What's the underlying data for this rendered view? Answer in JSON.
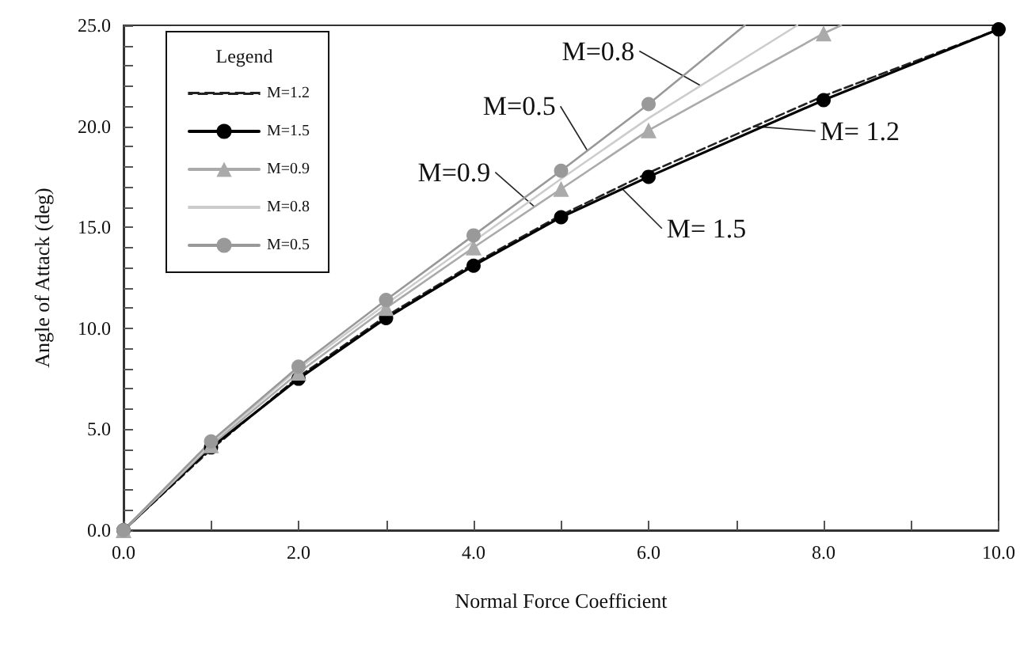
{
  "chart_data": {
    "type": "line",
    "xlabel": "Normal Force Coefficient",
    "ylabel": "Angle of Attack (deg)",
    "legend_title": "Legend",
    "legend": "top left",
    "grid": false,
    "xlim": [
      0,
      10
    ],
    "ylim": [
      0,
      25
    ],
    "xticks": [
      {
        "value": 0,
        "label": "0.0"
      },
      {
        "value": 1,
        "label": null
      },
      {
        "value": 2,
        "label": "2.0"
      },
      {
        "value": 3,
        "label": null
      },
      {
        "value": 4,
        "label": "4.0"
      },
      {
        "value": 5,
        "label": null
      },
      {
        "value": 6,
        "label": "6.0"
      },
      {
        "value": 7,
        "label": null
      },
      {
        "value": 8,
        "label": "8.0"
      },
      {
        "value": 9,
        "label": null
      },
      {
        "value": 10,
        "label": "10.0"
      }
    ],
    "yticks": [
      {
        "value": 0,
        "label": "0.0"
      },
      {
        "value": 1,
        "label": null
      },
      {
        "value": 2,
        "label": null
      },
      {
        "value": 3,
        "label": null
      },
      {
        "value": 4,
        "label": null
      },
      {
        "value": 5,
        "label": "5.0"
      },
      {
        "value": 6,
        "label": null
      },
      {
        "value": 7,
        "label": null
      },
      {
        "value": 8,
        "label": null
      },
      {
        "value": 9,
        "label": null
      },
      {
        "value": 10,
        "label": "10.0"
      },
      {
        "value": 11,
        "label": null
      },
      {
        "value": 12,
        "label": null
      },
      {
        "value": 13,
        "label": null
      },
      {
        "value": 14,
        "label": null
      },
      {
        "value": 15,
        "label": "15.0"
      },
      {
        "value": 16,
        "label": null
      },
      {
        "value": 17,
        "label": null
      },
      {
        "value": 18,
        "label": null
      },
      {
        "value": 19,
        "label": null
      },
      {
        "value": 20,
        "label": "20.0"
      },
      {
        "value": 21,
        "label": null
      },
      {
        "value": 22,
        "label": null
      },
      {
        "value": 23,
        "label": null
      },
      {
        "value": 24,
        "label": null
      },
      {
        "value": 25,
        "label": "25.0"
      }
    ],
    "series": [
      {
        "name": "M=1.2",
        "color": "#222222",
        "marker": "none",
        "line_style": "dashed",
        "x": [
          0,
          1,
          2,
          3,
          4,
          5,
          6,
          8,
          10
        ],
        "values": [
          0,
          4.0,
          7.6,
          10.6,
          13.2,
          15.6,
          17.7,
          21.5,
          24.8
        ]
      },
      {
        "name": "M=1.5",
        "color": "#000000",
        "marker": "circle",
        "line_style": "solid",
        "x": [
          0,
          1,
          2,
          3,
          4,
          5,
          6,
          8,
          10
        ],
        "values": [
          0,
          4.1,
          7.5,
          10.5,
          13.1,
          15.5,
          17.5,
          21.3,
          24.8
        ]
      },
      {
        "name": "M=0.9",
        "color": "#aaaaaa",
        "marker": "triangle",
        "line_style": "solid",
        "x": [
          0,
          1,
          2,
          3,
          4,
          5,
          6,
          8,
          8.2
        ],
        "values": [
          0,
          4.2,
          7.8,
          11.0,
          14.0,
          16.9,
          19.8,
          24.6,
          25
        ]
      },
      {
        "name": "M=0.8",
        "color": "#cccccc",
        "marker": "none",
        "line_style": "solid",
        "x": [
          0,
          1,
          2,
          3,
          4,
          5,
          6,
          7.7
        ],
        "values": [
          0,
          4.3,
          8.0,
          11.2,
          14.3,
          17.4,
          20.4,
          25
        ]
      },
      {
        "name": "M=0.5",
        "color": "#999999",
        "marker": "circle",
        "line_style": "solid",
        "x": [
          0,
          1,
          2,
          3,
          4,
          5,
          6,
          7.1
        ],
        "values": [
          0,
          4.4,
          8.1,
          11.4,
          14.6,
          17.8,
          21.1,
          25
        ]
      }
    ],
    "annotations": [
      {
        "text": "M=0.8",
        "x": 6.6,
        "y": 22.0
      },
      {
        "text": "M=0.5",
        "x": 5.3,
        "y": 18.8
      },
      {
        "text": "M=0.9",
        "x": 4.7,
        "y": 16.0
      },
      {
        "text": "M= 1.2",
        "x": 7.2,
        "y": 20.0
      },
      {
        "text": "M= 1.5",
        "x": 5.7,
        "y": 16.9
      }
    ]
  }
}
